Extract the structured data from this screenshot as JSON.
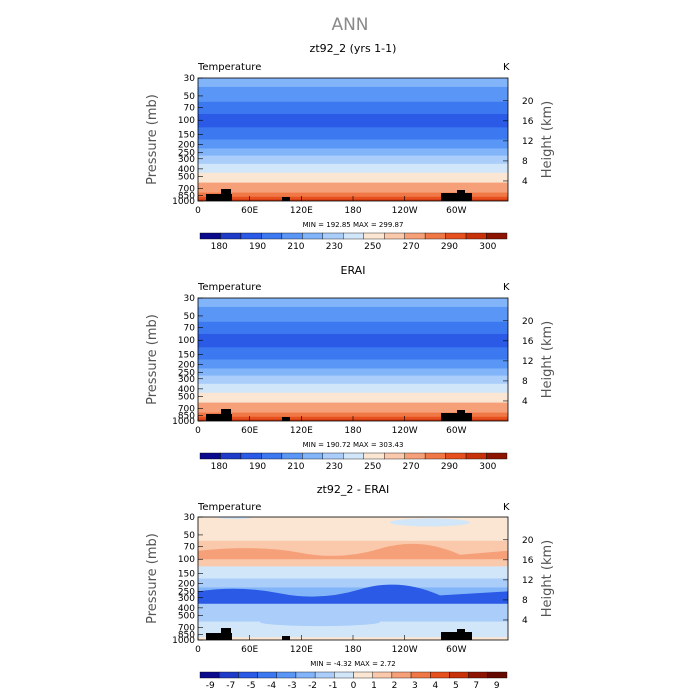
{
  "title": "ANN",
  "chart_data": [
    {
      "type": "heatmap",
      "title": "zt92_2 (yrs 1-1)",
      "left_label": "Temperature",
      "right_label": "K",
      "ylabel": "Pressure (mb)",
      "ylabel_right": "Height (km)",
      "xticks": [
        "0",
        "60E",
        "120E",
        "180",
        "120W",
        "60W"
      ],
      "yticks": [
        "30",
        "50",
        "70",
        "100",
        "150",
        "200",
        "250",
        "300",
        "400",
        "500",
        "700",
        "850",
        "1000"
      ],
      "yticks_right": [
        "20",
        "16",
        "12",
        "8",
        "4"
      ],
      "stats": "MIN = 192.85   MAX = 299.87",
      "colorbar_labels": [
        "180",
        "190",
        "210",
        "230",
        "250",
        "270",
        "290",
        "300"
      ],
      "levels": [
        {
          "p": 30,
          "v": 221
        },
        {
          "p": 50,
          "v": 213
        },
        {
          "p": 70,
          "v": 205
        },
        {
          "p": 100,
          "v": 198
        },
        {
          "p": 150,
          "v": 209
        },
        {
          "p": 200,
          "v": 218
        },
        {
          "p": 250,
          "v": 224
        },
        {
          "p": 300,
          "v": 231
        },
        {
          "p": 400,
          "v": 246
        },
        {
          "p": 500,
          "v": 257
        },
        {
          "p": 700,
          "v": 273
        },
        {
          "p": 850,
          "v": 283
        },
        {
          "p": 1000,
          "v": 291
        }
      ]
    },
    {
      "type": "heatmap",
      "title": "ERAI",
      "left_label": "Temperature",
      "right_label": "K",
      "ylabel": "Pressure (mb)",
      "ylabel_right": "Height (km)",
      "xticks": [
        "0",
        "60E",
        "120E",
        "180",
        "120W",
        "60W"
      ],
      "yticks": [
        "30",
        "50",
        "70",
        "100",
        "150",
        "200",
        "250",
        "300",
        "400",
        "500",
        "700",
        "850",
        "1000"
      ],
      "yticks_right": [
        "20",
        "16",
        "12",
        "8",
        "4"
      ],
      "stats": "MIN = 190.72   MAX = 303.43",
      "colorbar_labels": [
        "180",
        "190",
        "210",
        "230",
        "250",
        "270",
        "290",
        "300"
      ],
      "levels": [
        {
          "p": 30,
          "v": 221
        },
        {
          "p": 50,
          "v": 213
        },
        {
          "p": 70,
          "v": 205
        },
        {
          "p": 100,
          "v": 197
        },
        {
          "p": 150,
          "v": 208
        },
        {
          "p": 200,
          "v": 217
        },
        {
          "p": 250,
          "v": 223
        },
        {
          "p": 300,
          "v": 230
        },
        {
          "p": 400,
          "v": 245
        },
        {
          "p": 500,
          "v": 256
        },
        {
          "p": 700,
          "v": 272
        },
        {
          "p": 850,
          "v": 282
        },
        {
          "p": 1000,
          "v": 292
        }
      ]
    },
    {
      "type": "heatmap",
      "title": "zt92_2 - ERAI",
      "left_label": "Temperature",
      "right_label": "K",
      "ylabel": "Pressure (mb)",
      "ylabel_right": "Height (km)",
      "xticks": [
        "0",
        "60E",
        "120E",
        "180",
        "120W",
        "60W"
      ],
      "yticks": [
        "30",
        "50",
        "70",
        "100",
        "150",
        "200",
        "250",
        "300",
        "400",
        "500",
        "700",
        "850",
        "1000"
      ],
      "yticks_right": [
        "20",
        "16",
        "12",
        "8",
        "4"
      ],
      "stats": "MIN =    -4.32   MAX =     2.72",
      "colorbar_labels": [
        "-9",
        "-7",
        "-5",
        "-4",
        "-3",
        "-2",
        "-1",
        "0",
        "1",
        "2",
        "3",
        "4",
        "5",
        "7",
        "9"
      ],
      "levels": [
        {
          "p": 30,
          "v": 0.5
        },
        {
          "p": 50,
          "v": 0.5
        },
        {
          "p": 70,
          "v": 1.2
        },
        {
          "p": 100,
          "v": 1.6
        },
        {
          "p": 150,
          "v": -0.8
        },
        {
          "p": 200,
          "v": -1.7
        },
        {
          "p": 250,
          "v": -2.6
        },
        {
          "p": 300,
          "v": -2.2
        },
        {
          "p": 400,
          "v": -1.6
        },
        {
          "p": 500,
          "v": -1.2
        },
        {
          "p": 700,
          "v": -0.6
        },
        {
          "p": 850,
          "v": -0.3
        },
        {
          "p": 1000,
          "v": 0.3
        }
      ]
    }
  ],
  "colors": {
    "temperature_scale": [
      "#0a0a8c",
      "#1e3cc8",
      "#2a5ae6",
      "#3c78f0",
      "#5a96f5",
      "#82b4fa",
      "#aacdfa",
      "#d2e6fa",
      "#fae6d2",
      "#fac8aa",
      "#f5a078",
      "#f07846",
      "#e6501e",
      "#c8320a",
      "#8c1400"
    ],
    "difference_scale": [
      "#0a0a8c",
      "#1e3cc8",
      "#2a5ae6",
      "#3c78f0",
      "#5a96f5",
      "#82b4fa",
      "#aacdfa",
      "#d2e6fa",
      "#fae6d2",
      "#fac8aa",
      "#f5a078",
      "#f07846",
      "#e6501e",
      "#c8320a",
      "#8c1400",
      "#640a00"
    ],
    "terrain": "#000000"
  }
}
